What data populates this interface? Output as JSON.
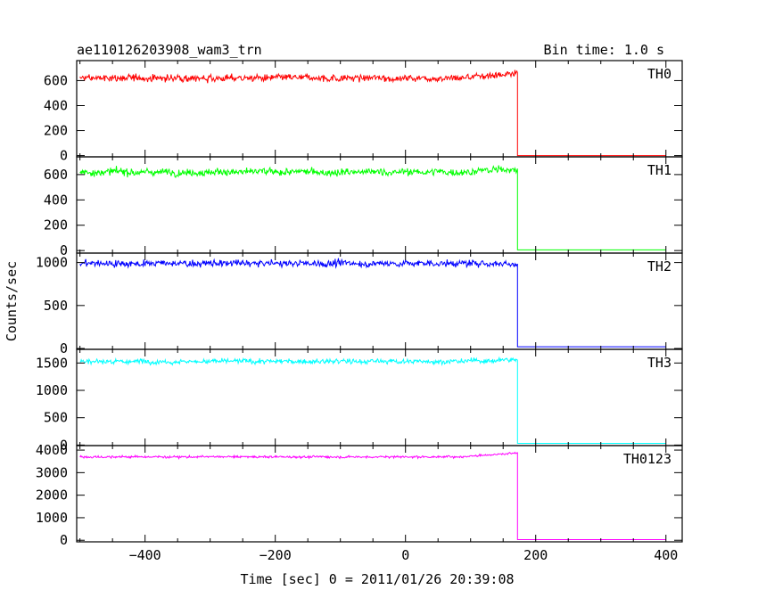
{
  "chart_data": {
    "type": "line",
    "title": "ae110126203908_wam3_trn",
    "bin_time_label": "Bin time: 1.0 s",
    "xlabel": "Time [sec] 0 = 2011/01/26 20:39:08",
    "ylabel": "Counts/sec",
    "xlim": [
      -505,
      425
    ],
    "x_ticks": [
      -400,
      -200,
      0,
      200,
      400
    ],
    "step_time": 172,
    "x_start": -500,
    "x_end": 400,
    "panels": [
      {
        "name": "TH0",
        "color": "#ff0000",
        "ylim": [
          -10,
          760
        ],
        "y_ticks": [
          0,
          200,
          400,
          600
        ],
        "mean_before": 620,
        "noise": 25,
        "ramp_end": 660,
        "mean_after": 0
      },
      {
        "name": "TH1",
        "color": "#00ff00",
        "ylim": [
          -20,
          740
        ],
        "y_ticks": [
          0,
          200,
          400,
          600
        ],
        "mean_before": 620,
        "noise": 25,
        "ramp_end": 645,
        "mean_after": 5
      },
      {
        "name": "TH2",
        "color": "#0000ff",
        "ylim": [
          -10,
          1110
        ],
        "y_ticks": [
          0,
          500,
          1000
        ],
        "mean_before": 990,
        "noise": 35,
        "ramp_end": 990,
        "mean_after": 20
      },
      {
        "name": "TH3",
        "color": "#00ffff",
        "ylim": [
          -10,
          1750
        ],
        "y_ticks": [
          0,
          500,
          1000,
          1500
        ],
        "mean_before": 1530,
        "noise": 40,
        "ramp_end": 1560,
        "mean_after": 30
      },
      {
        "name": "TH0123",
        "color": "#ff00ff",
        "ylim": [
          -70,
          4200
        ],
        "y_ticks": [
          0,
          1000,
          2000,
          3000,
          4000
        ],
        "mean_before": 3700,
        "noise": 45,
        "ramp_end": 3880,
        "mean_after": 30
      }
    ]
  }
}
